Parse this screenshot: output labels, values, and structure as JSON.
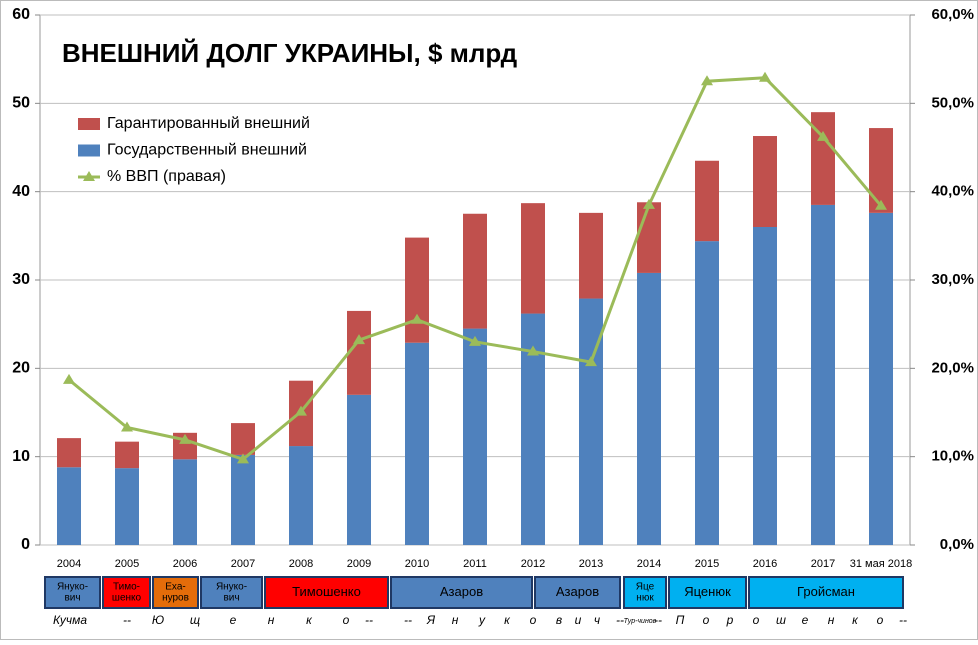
{
  "chart_data": {
    "type": "stacked-bar-line",
    "title": "ВНЕШНИЙ ДОЛГ УКРАИНЫ, $ млрд",
    "categories": [
      "2004",
      "2005",
      "2006",
      "2007",
      "2008",
      "2009",
      "2010",
      "2011",
      "2012",
      "2013",
      "2014",
      "2015",
      "2016",
      "2017",
      "31 мая 2018"
    ],
    "series": [
      {
        "name": "Государственный внешний",
        "color": "#4f81bd",
        "kind": "bar",
        "values": [
          8.8,
          8.7,
          9.7,
          10.2,
          11.2,
          17.0,
          22.9,
          24.5,
          26.2,
          27.9,
          30.8,
          34.4,
          36.0,
          38.5,
          37.6
        ]
      },
      {
        "name": "Гарантированный внешний",
        "color": "#c0504d",
        "kind": "bar",
        "values": [
          3.3,
          3.0,
          3.0,
          3.6,
          7.4,
          9.5,
          11.9,
          13.0,
          12.5,
          9.7,
          8.0,
          9.1,
          10.3,
          10.5,
          9.6
        ]
      },
      {
        "name": "% ВВП (правая)",
        "color": "#9bbb59",
        "kind": "line",
        "axis": "y2",
        "values": [
          18.7,
          13.3,
          11.9,
          9.7,
          15.1,
          23.2,
          25.5,
          23.0,
          21.9,
          20.7,
          38.5,
          52.5,
          52.9,
          46.2,
          38.4
        ]
      }
    ],
    "ylim": [
      0,
      60
    ],
    "yticks": [
      0,
      10,
      20,
      30,
      40,
      50,
      60
    ],
    "y2lim": [
      0,
      60
    ],
    "y2ticks": [
      {
        "value": 0,
        "label": "0,0%"
      },
      {
        "value": 10,
        "label": "10,0%"
      },
      {
        "value": 20,
        "label": "20,0%"
      },
      {
        "value": 30,
        "label": "30,0%"
      },
      {
        "value": 40,
        "label": "40,0%"
      },
      {
        "value": 50,
        "label": "50,0%"
      },
      {
        "value": 60,
        "label": "60,0%"
      }
    ],
    "grid": true,
    "legend_order": [
      1,
      0,
      2
    ]
  },
  "pm_row": [
    {
      "lines": [
        "Януко-",
        "вич"
      ],
      "color": "#4f81bd"
    },
    {
      "lines": [
        "Тимо-",
        "шенко"
      ],
      "color": "#ff0000"
    },
    {
      "lines": [
        "Еха-",
        "нуров"
      ],
      "color": "#e46c0a"
    },
    {
      "lines": [
        "Януко-",
        "вич"
      ],
      "color": "#4f81bd"
    },
    {
      "lines": [
        "Тимошенко"
      ],
      "color": "#ff0000"
    },
    {
      "lines": [
        "Азаров"
      ],
      "color": "#4f81bd"
    },
    {
      "lines": [
        "Азаров"
      ],
      "color": "#4f81bd"
    },
    {
      "lines": [
        "Яце",
        "нюк"
      ],
      "color": "#00b0f0"
    },
    {
      "lines": [
        "Яценюк"
      ],
      "color": "#00b0f0"
    },
    {
      "lines": [
        "Гройсман"
      ],
      "color": "#00b0f0"
    }
  ],
  "president_row": [
    "Кучма",
    "--",
    "Ю",
    "щ",
    "е",
    "н",
    "к",
    "о",
    "--",
    "--",
    "Я",
    "н",
    "у",
    "к",
    "о",
    "в",
    "и",
    "ч",
    "--",
    "Тур-чинов",
    "--",
    "П",
    "о",
    "р",
    "о",
    "ш",
    "е",
    "н",
    "к",
    "о",
    "--"
  ]
}
